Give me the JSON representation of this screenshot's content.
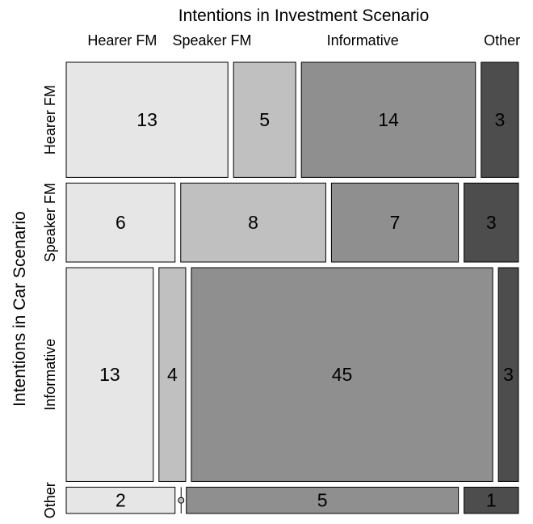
{
  "chart_data": {
    "type": "mosaic",
    "title": "Intentions in Investment Scenario",
    "xlabel": "Intentions in Investment Scenario",
    "ylabel": "Intentions in Car Scenario",
    "column_categories": [
      "Hearer FM",
      "Speaker FM",
      "Informative",
      "Other"
    ],
    "row_categories": [
      "Hearer FM",
      "Speaker FM",
      "Informative",
      "Other"
    ],
    "counts": [
      [
        13,
        5,
        14,
        3
      ],
      [
        6,
        8,
        7,
        3
      ],
      [
        13,
        4,
        45,
        3
      ],
      [
        2,
        0,
        5,
        1
      ]
    ],
    "fills": [
      "#e6e6e6",
      "#c0c0c0",
      "#8f8f8f",
      "#4d4d4d"
    ]
  }
}
